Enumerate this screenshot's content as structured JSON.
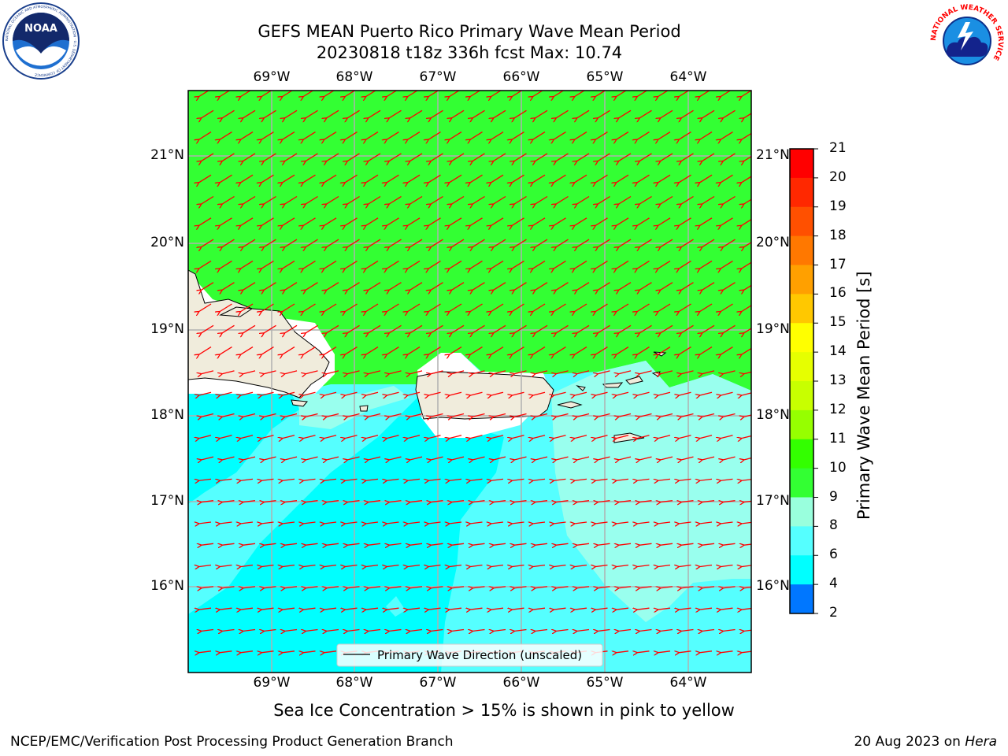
{
  "header": {
    "title_line1": "GEFS MEAN Puerto Rico Primary Wave Mean Period",
    "title_line2": "20230818 t18z 336h fcst   Max: 10.74"
  },
  "logos": {
    "noaa": {
      "text": "NOAA",
      "ring_text": "NATIONAL OCEANIC AND ATMOSPHERIC ADMINISTRATION · U.S. DEPARTMENT OF COMMERCE",
      "icon": "noaa-logo-icon"
    },
    "nws": {
      "ring_text": "NATIONAL WEATHER SERVICE",
      "icon": "nws-logo-icon"
    }
  },
  "map": {
    "lon_ticks": [
      "69°W",
      "68°W",
      "67°W",
      "66°W",
      "65°W",
      "64°W"
    ],
    "lat_ticks": [
      "21°N",
      "20°N",
      "19°N",
      "18°N",
      "17°N",
      "16°N"
    ],
    "legend_label": "Primary Wave Direction (unscaled)",
    "colors": {
      "green": "#33ff33",
      "lightcyan": "#99ffee",
      "cyan2": "#55ffff",
      "cyan": "#00ffff",
      "land": "#f0ecdc",
      "arrow": "#ff0000"
    }
  },
  "colorbar": {
    "label": "Primary Wave Mean Period [s]",
    "ticks": [
      "21",
      "20",
      "19",
      "18",
      "17",
      "16",
      "15",
      "14",
      "13",
      "12",
      "11",
      "10",
      "9",
      "8",
      "6",
      "4",
      "2"
    ],
    "colors": [
      "#ff0000",
      "#ff2800",
      "#ff5000",
      "#ff7800",
      "#ffa000",
      "#ffc800",
      "#ffff00",
      "#e6ff00",
      "#c8ff00",
      "#96ff00",
      "#33ff00",
      "#33ff33",
      "#99ffdd",
      "#55ffff",
      "#00ffff",
      "#0077ff",
      "#0000ff"
    ]
  },
  "footnote": "Sea Ice Concentration > 15% is shown in pink to yellow",
  "footer": {
    "left": "NCEP/EMC/Verification Post Processing Product Generation Branch",
    "right_prefix": "20 Aug 2023 on ",
    "right_host": "Hera"
  }
}
